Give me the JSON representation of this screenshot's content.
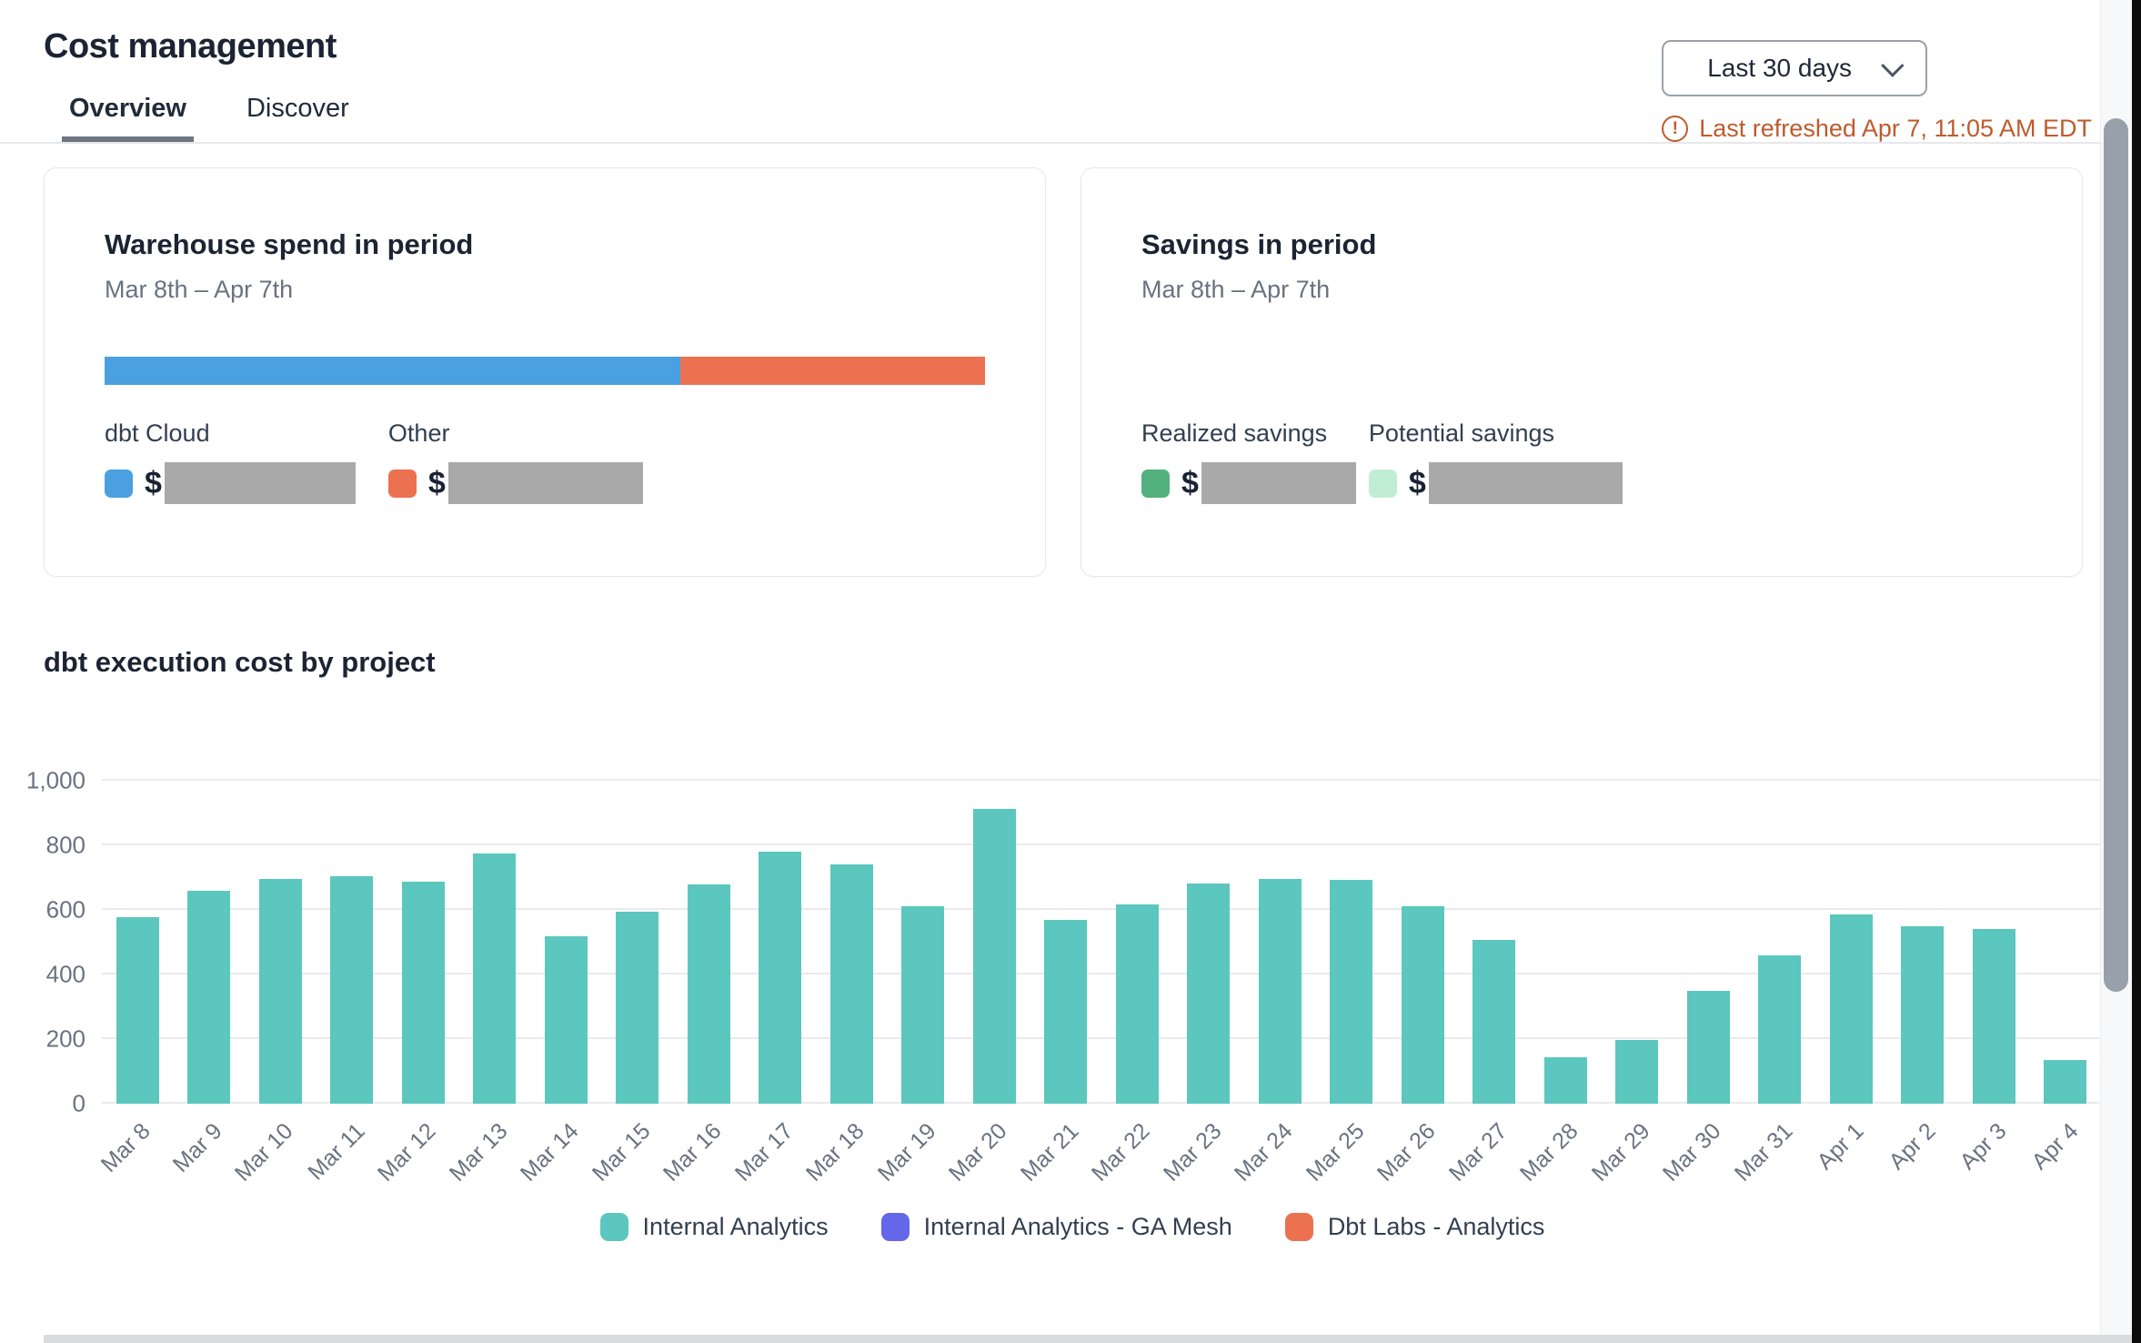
{
  "header": {
    "title": "Cost management",
    "range_label": "Last 30 days",
    "last_refreshed": "Last refreshed Apr 7, 11:05 AM EDT"
  },
  "tabs": [
    {
      "label": "Overview",
      "active": true
    },
    {
      "label": "Discover",
      "active": false
    }
  ],
  "warehouse_card": {
    "title": "Warehouse spend in period",
    "subtitle": "Mar 8th – Apr 7th",
    "segments": [
      {
        "label": "dbt Cloud",
        "color": "#4aa0e0",
        "pct": 65.4,
        "currency_symbol": "$",
        "value_redacted": true
      },
      {
        "label": "Other",
        "color": "#ec7150",
        "pct": 34.6,
        "currency_symbol": "$",
        "value_redacted": true
      }
    ]
  },
  "savings_card": {
    "title": "Savings in period",
    "subtitle": "Mar 8th – Apr 7th",
    "items": [
      {
        "label": "Realized savings",
        "color": "#53b17d",
        "currency_symbol": "$",
        "value_redacted": true
      },
      {
        "label": "Potential savings",
        "color": "#c2edd5",
        "currency_symbol": "$",
        "value_redacted": true
      }
    ]
  },
  "chart_data": {
    "type": "bar",
    "title": "dbt execution cost by project",
    "categories": [
      "Mar 8",
      "Mar 9",
      "Mar 10",
      "Mar 11",
      "Mar 12",
      "Mar 13",
      "Mar 14",
      "Mar 15",
      "Mar 16",
      "Mar 17",
      "Mar 18",
      "Mar 19",
      "Mar 20",
      "Mar 21",
      "Mar 22",
      "Mar 23",
      "Mar 24",
      "Mar 25",
      "Mar 26",
      "Mar 27",
      "Mar 28",
      "Mar 29",
      "Mar 30",
      "Mar 31",
      "Apr 1",
      "Apr 2",
      "Apr 3",
      "Apr 4"
    ],
    "series": [
      {
        "name": "Internal Analytics",
        "color": "#5bc7be",
        "values": [
          578,
          658,
          697,
          703,
          688,
          774,
          517,
          594,
          679,
          780,
          741,
          612,
          913,
          570,
          618,
          683,
          697,
          694,
          611,
          508,
          144,
          196,
          349,
          460,
          586,
          549,
          542,
          134
        ]
      }
    ],
    "legend": [
      {
        "label": "Internal Analytics",
        "color": "#5bc7be"
      },
      {
        "label": "Internal Analytics - GA Mesh",
        "color": "#6467e8"
      },
      {
        "label": "Dbt Labs - Analytics",
        "color": "#ec7150"
      }
    ],
    "xlabel": "",
    "ylabel": "",
    "ylim": [
      0,
      1000
    ],
    "yticks": [
      0,
      200,
      400,
      600,
      800,
      1000
    ],
    "ytick_labels": [
      "0",
      "200",
      "400",
      "600",
      "800",
      "1,000"
    ],
    "grid": true,
    "legend_position": "bottom"
  }
}
